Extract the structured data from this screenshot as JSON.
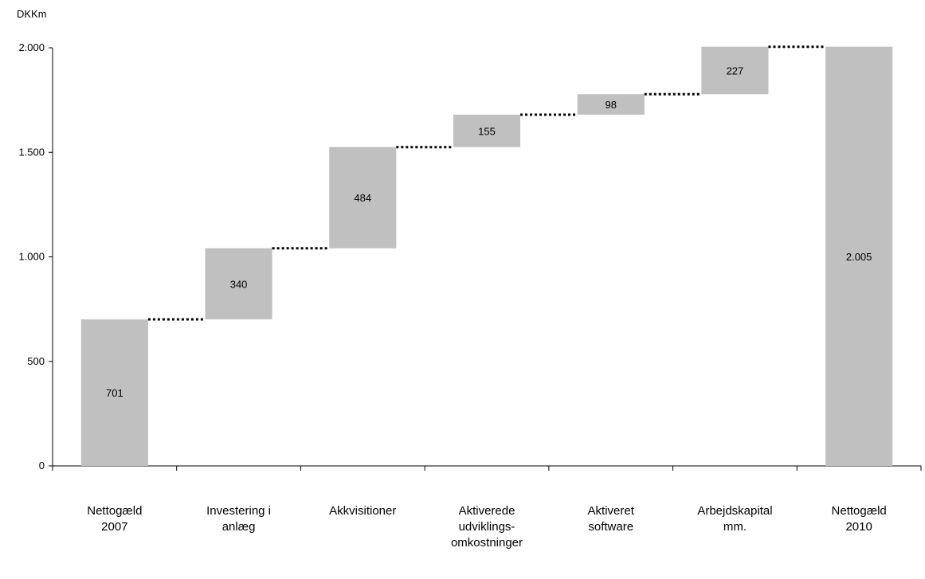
{
  "chart_data": {
    "type": "bar",
    "subtype": "waterfall",
    "unit_label": "DKKm",
    "categories": [
      [
        "Nettogæld",
        "2007"
      ],
      [
        "Investering i",
        "anlæg"
      ],
      [
        "Akkvisitioner"
      ],
      [
        "Aktiverede",
        "udviklings-",
        "omkostninger"
      ],
      [
        "Aktiveret",
        "software"
      ],
      [
        "Arbejdskapital",
        "mm."
      ],
      [
        "Nettogæld",
        "2010"
      ]
    ],
    "values": [
      701,
      340,
      484,
      155,
      98,
      227,
      2005
    ],
    "bar_kind": [
      "total",
      "increase",
      "increase",
      "increase",
      "increase",
      "increase",
      "total"
    ],
    "value_labels": [
      "701",
      "340",
      "484",
      "155",
      "98",
      "227",
      "2.005"
    ],
    "ylim": [
      0,
      2250
    ],
    "yticks": [
      0,
      500,
      1000,
      1500,
      2000
    ],
    "ytick_labels": [
      "0",
      "500",
      "1.000",
      "1.500",
      "2.000"
    ],
    "bar_color": "#c0c0c0",
    "connector_color": "#000000",
    "grid": false
  }
}
